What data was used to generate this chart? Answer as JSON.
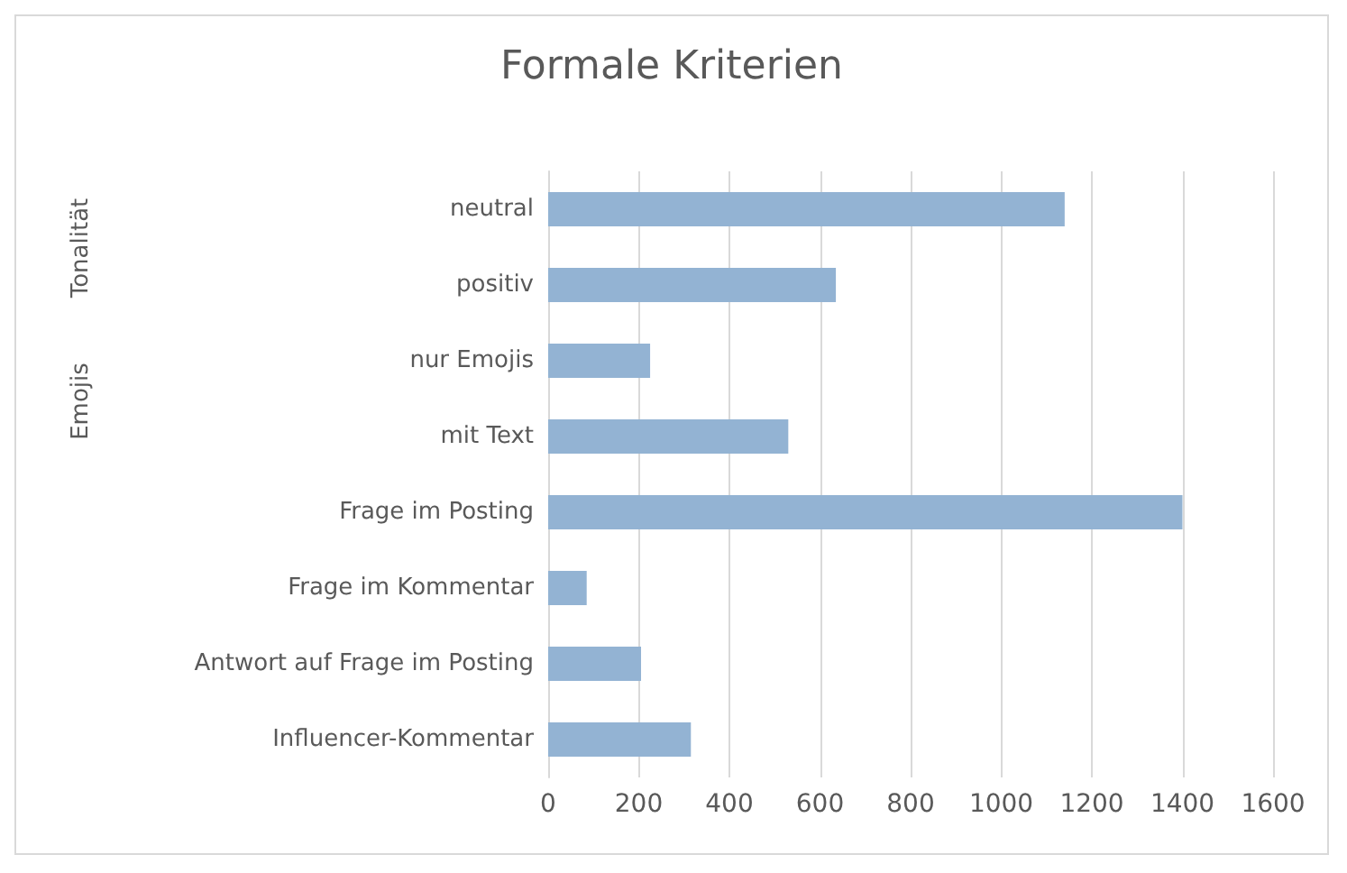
{
  "chart_data": {
    "type": "bar",
    "orientation": "horizontal",
    "title": "Formale Kriterien",
    "categories": [
      "neutral",
      "positiv",
      "nur Emojis",
      "mit Text",
      "Frage im Posting",
      "Frage im Kommentar",
      "Antwort auf Frage im Posting",
      "Influencer-Kommentar"
    ],
    "values": [
      1140,
      635,
      225,
      530,
      1400,
      85,
      205,
      315
    ],
    "color": "#93b3d3",
    "xlim": [
      0,
      1600
    ],
    "xticks": [
      0,
      200,
      400,
      600,
      800,
      1000,
      1200,
      1400,
      1600
    ],
    "grid": "x",
    "annotations": [
      "Tonalität",
      "Emojis"
    ]
  }
}
